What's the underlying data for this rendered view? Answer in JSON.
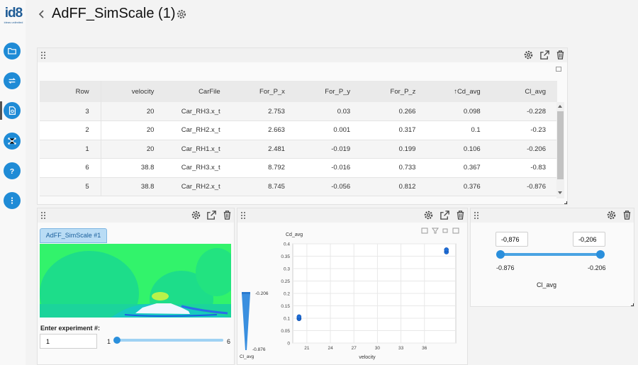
{
  "app": {
    "logo_text": "id8",
    "logo_subtext": "ideas unlimited",
    "title": "AdFF_SimScale (1)"
  },
  "sidebar": {
    "items": [
      {
        "name": "folder-icon"
      },
      {
        "name": "transfer-icon"
      },
      {
        "name": "document-icon",
        "active": true
      },
      {
        "name": "network-icon"
      },
      {
        "name": "help-icon"
      },
      {
        "name": "more-icon"
      }
    ],
    "accent_color": "#1f8bd6"
  },
  "table": {
    "columns": [
      "Row",
      "velocity",
      "CarFile",
      "For_P_x",
      "For_P_y",
      "For_P_z",
      "↑Cd_avg",
      "Cl_avg"
    ],
    "rows": [
      [
        "3",
        "20",
        "Car_RH3.x_t",
        "2.753",
        "0.03",
        "0.266",
        "0.098",
        "-0.228"
      ],
      [
        "2",
        "20",
        "Car_RH2.x_t",
        "2.663",
        "0.001",
        "0.317",
        "0.1",
        "-0.23"
      ],
      [
        "1",
        "20",
        "Car_RH1.x_t",
        "2.481",
        "-0.019",
        "0.199",
        "0.106",
        "-0.206"
      ],
      [
        "6",
        "38.8",
        "Car_RH3.x_t",
        "8.792",
        "-0.016",
        "0.733",
        "0.367",
        "-0.83"
      ],
      [
        "5",
        "38.8",
        "Car_RH2.x_t",
        "8.745",
        "-0.056",
        "0.812",
        "0.376",
        "-0.876"
      ]
    ]
  },
  "image_panel": {
    "tab_label": "AdFF_SimScale #1",
    "experiment_label": "Enter experiment #:",
    "experiment_value": "1",
    "slider_min": "1",
    "slider_max": "6",
    "slider_value": 1
  },
  "chart_data": {
    "type": "scatter",
    "xlabel": "velocity",
    "ylabel": "Cd_avg",
    "x_ticks": [
      "21",
      "24",
      "27",
      "30",
      "33",
      "36"
    ],
    "y_ticks": [
      "0",
      "0.05",
      "0.1",
      "0.15",
      "0.2",
      "0.25",
      "0.3",
      "0.35",
      "0.4"
    ],
    "xlim": [
      19.2,
      40
    ],
    "ylim": [
      0,
      0.4
    ],
    "series": [
      {
        "points": [
          [
            20,
            0.098
          ],
          [
            20,
            0.1
          ],
          [
            20,
            0.106
          ],
          [
            38.8,
            0.367
          ],
          [
            38.8,
            0.376
          ]
        ]
      }
    ],
    "color_legend": {
      "title": "Cl_avg",
      "max_label": "-0.206",
      "min_label": "-0.876"
    },
    "grid": true
  },
  "range_panel": {
    "min_input": "-0,876",
    "max_input": "-0,206",
    "min_label": "-0.876",
    "max_label": "-0.206",
    "field_label": "Cl_avg",
    "range_min": -0.876,
    "range_max": -0.206
  }
}
